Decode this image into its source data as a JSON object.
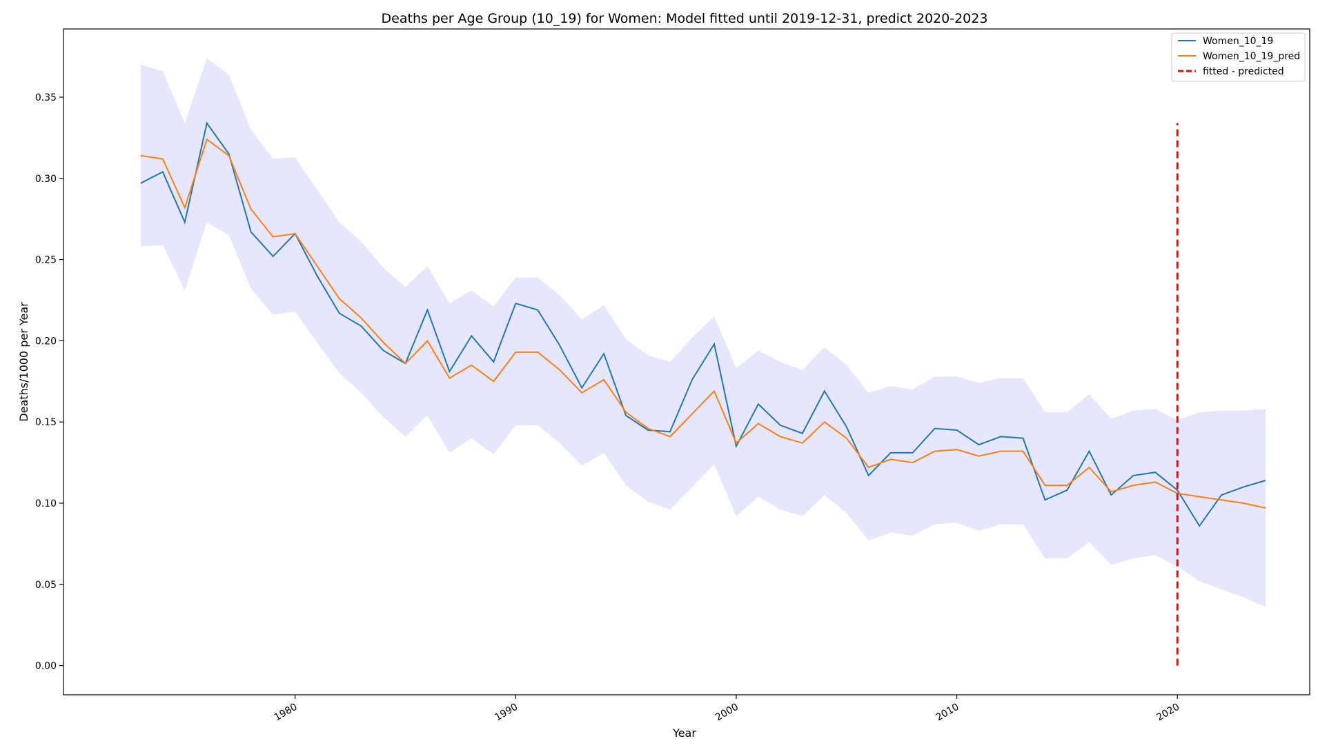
{
  "chart_data": {
    "type": "line",
    "title": "Deaths per Age Group (10_19) for Women: Model fitted until 2019-12-31, predict 2020-2023",
    "xlabel": "Year",
    "ylabel": "Deaths/1000 per Year",
    "xlim": [
      1969.5,
      2026
    ],
    "ylim": [
      -0.018,
      0.392
    ],
    "x_ticks": [
      1980,
      1990,
      2000,
      2010,
      2020
    ],
    "y_ticks": [
      0.0,
      0.05,
      0.1,
      0.15,
      0.2,
      0.25,
      0.3,
      0.35
    ],
    "x_tick_labels": [
      "1980",
      "1990",
      "2000",
      "2010",
      "2020"
    ],
    "y_tick_labels": [
      "0.00",
      "0.05",
      "0.10",
      "0.15",
      "0.20",
      "0.25",
      "0.30",
      "0.35"
    ],
    "grid": false,
    "legend_position": "top-right",
    "x": [
      1973,
      1974,
      1975,
      1976,
      1977,
      1978,
      1979,
      1980,
      1981,
      1982,
      1983,
      1984,
      1985,
      1986,
      1987,
      1988,
      1989,
      1990,
      1991,
      1992,
      1993,
      1994,
      1995,
      1996,
      1997,
      1998,
      1999,
      2000,
      2001,
      2002,
      2003,
      2004,
      2005,
      2006,
      2007,
      2008,
      2009,
      2010,
      2011,
      2012,
      2013,
      2014,
      2015,
      2016,
      2017,
      2018,
      2019,
      2020,
      2021,
      2022,
      2023,
      2024
    ],
    "series": [
      {
        "name": "Women_10_19",
        "color": "#1f77b4",
        "x": [
          1973,
          1974,
          1975,
          1976,
          1977,
          1978,
          1979,
          1980,
          1981,
          1982,
          1983,
          1984,
          1985,
          1986,
          1987,
          1988,
          1989,
          1990,
          1991,
          1992,
          1993,
          1994,
          1995,
          1996,
          1997,
          1998,
          1999,
          2000,
          2001,
          2002,
          2003,
          2004,
          2005,
          2006,
          2007,
          2008,
          2009,
          2010,
          2011,
          2012,
          2013,
          2014,
          2015,
          2016,
          2017,
          2018,
          2019,
          2020,
          2021,
          2022,
          2023,
          2024
        ],
        "values": [
          0.297,
          0.304,
          0.273,
          0.334,
          0.315,
          0.267,
          0.252,
          0.266,
          0.24,
          0.217,
          0.209,
          0.194,
          0.186,
          0.219,
          0.181,
          0.203,
          0.187,
          0.223,
          0.219,
          0.197,
          0.171,
          0.192,
          0.154,
          0.145,
          0.144,
          0.176,
          0.198,
          0.135,
          0.161,
          0.148,
          0.143,
          0.169,
          0.147,
          0.117,
          0.131,
          0.131,
          0.146,
          0.145,
          0.136,
          0.141,
          0.14,
          0.102,
          0.108,
          0.132,
          0.105,
          0.117,
          0.119,
          0.108,
          0.086,
          0.105,
          0.11,
          0.114
        ]
      },
      {
        "name": "Women_10_19_pred",
        "color": "#ff7f0e",
        "x": [
          1973,
          1974,
          1975,
          1976,
          1977,
          1978,
          1979,
          1980,
          1981,
          1982,
          1983,
          1984,
          1985,
          1986,
          1987,
          1988,
          1989,
          1990,
          1991,
          1992,
          1993,
          1994,
          1995,
          1996,
          1997,
          1998,
          1999,
          2000,
          2001,
          2002,
          2003,
          2004,
          2005,
          2006,
          2007,
          2008,
          2009,
          2010,
          2011,
          2012,
          2013,
          2014,
          2015,
          2016,
          2017,
          2018,
          2019,
          2020,
          2021,
          2022,
          2023,
          2024
        ],
        "values": [
          0.314,
          0.312,
          0.282,
          0.324,
          0.314,
          0.281,
          0.264,
          0.266,
          0.246,
          0.226,
          0.214,
          0.199,
          0.186,
          0.2,
          0.177,
          0.185,
          0.175,
          0.193,
          0.193,
          0.182,
          0.168,
          0.176,
          0.156,
          0.146,
          0.141,
          0.155,
          0.169,
          0.137,
          0.149,
          0.141,
          0.137,
          0.15,
          0.14,
          0.122,
          0.127,
          0.125,
          0.132,
          0.133,
          0.129,
          0.132,
          0.132,
          0.111,
          0.111,
          0.122,
          0.107,
          0.111,
          0.113,
          0.106,
          0.104,
          0.102,
          0.1,
          0.097
        ]
      }
    ],
    "band": {
      "color": "#e6e6fc",
      "x": [
        1973,
        1974,
        1975,
        1976,
        1977,
        1978,
        1979,
        1980,
        1981,
        1982,
        1983,
        1984,
        1985,
        1986,
        1987,
        1988,
        1989,
        1990,
        1991,
        1992,
        1993,
        1994,
        1995,
        1996,
        1997,
        1998,
        1999,
        2000,
        2001,
        2002,
        2003,
        2004,
        2005,
        2006,
        2007,
        2008,
        2009,
        2010,
        2011,
        2012,
        2013,
        2014,
        2015,
        2016,
        2017,
        2018,
        2019,
        2020,
        2021,
        2022,
        2023,
        2024
      ],
      "upper": [
        0.37,
        0.366,
        0.334,
        0.374,
        0.364,
        0.33,
        0.312,
        0.313,
        0.293,
        0.273,
        0.261,
        0.245,
        0.233,
        0.246,
        0.223,
        0.231,
        0.221,
        0.239,
        0.239,
        0.228,
        0.213,
        0.222,
        0.201,
        0.191,
        0.187,
        0.202,
        0.215,
        0.183,
        0.194,
        0.187,
        0.182,
        0.196,
        0.185,
        0.168,
        0.172,
        0.17,
        0.178,
        0.178,
        0.174,
        0.177,
        0.177,
        0.156,
        0.156,
        0.167,
        0.152,
        0.157,
        0.158,
        0.151,
        0.156,
        0.157,
        0.157,
        0.158
      ],
      "lower": [
        0.258,
        0.259,
        0.231,
        0.273,
        0.265,
        0.232,
        0.216,
        0.218,
        0.199,
        0.18,
        0.168,
        0.153,
        0.141,
        0.154,
        0.131,
        0.14,
        0.13,
        0.148,
        0.148,
        0.137,
        0.123,
        0.131,
        0.111,
        0.101,
        0.096,
        0.11,
        0.124,
        0.092,
        0.104,
        0.096,
        0.092,
        0.105,
        0.094,
        0.077,
        0.082,
        0.08,
        0.087,
        0.088,
        0.083,
        0.087,
        0.087,
        0.066,
        0.066,
        0.076,
        0.062,
        0.066,
        0.068,
        0.061,
        0.052,
        0.047,
        0.042,
        0.036
      ]
    },
    "vline": {
      "name": "fitted - predicted",
      "color": "#ff0000",
      "x": 2020,
      "y": [
        0.0,
        0.334
      ]
    }
  }
}
